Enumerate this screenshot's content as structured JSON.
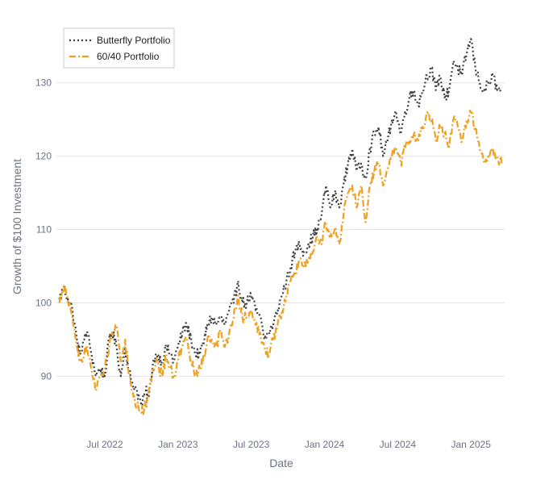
{
  "chart_data": {
    "type": "line",
    "title": "",
    "xlabel": "Date",
    "ylabel": "Growth of $100 Investment",
    "ylim": [
      83,
      138
    ],
    "y_ticks": [
      90,
      100,
      110,
      120,
      130
    ],
    "x_ticks": [
      {
        "t": 2022.5,
        "label": "Jul 2022"
      },
      {
        "t": 2023.0,
        "label": "Jan 2023"
      },
      {
        "t": 2023.5,
        "label": "Jul 2023"
      },
      {
        "t": 2024.0,
        "label": "Jan 2024"
      },
      {
        "t": 2024.5,
        "label": "Jul 2024"
      },
      {
        "t": 2025.0,
        "label": "Jan 2025"
      }
    ],
    "xlim": [
      2022.17,
      2025.23
    ],
    "grid": true,
    "legend_position": "top-left",
    "series": [
      {
        "name": "Butterfly Portfolio",
        "color": "#404040",
        "dash": "2,3",
        "x": [
          2022.19,
          2022.22,
          2022.25,
          2022.28,
          2022.31,
          2022.33,
          2022.36,
          2022.38,
          2022.41,
          2022.44,
          2022.47,
          2022.5,
          2022.53,
          2022.55,
          2022.58,
          2022.61,
          2022.64,
          2022.66,
          2022.69,
          2022.72,
          2022.75,
          2022.78,
          2022.8,
          2022.83,
          2022.86,
          2022.89,
          2022.92,
          2022.95,
          2022.97,
          2023.0,
          2023.03,
          2023.06,
          2023.09,
          2023.12,
          2023.15,
          2023.18,
          2023.2,
          2023.23,
          2023.26,
          2023.29,
          2023.32,
          2023.35,
          2023.38,
          2023.41,
          2023.44,
          2023.47,
          2023.5,
          2023.53,
          2023.56,
          2023.59,
          2023.62,
          2023.65,
          2023.68,
          2023.71,
          2023.74,
          2023.77,
          2023.8,
          2023.83,
          2023.86,
          2023.89,
          2023.92,
          2023.95,
          2023.98,
          2024.01,
          2024.04,
          2024.07,
          2024.1,
          2024.13,
          2024.16,
          2024.19,
          2024.22,
          2024.25,
          2024.28,
          2024.31,
          2024.34,
          2024.37,
          2024.4,
          2024.43,
          2024.46,
          2024.49,
          2024.52,
          2024.55,
          2024.58,
          2024.61,
          2024.64,
          2024.67,
          2024.7,
          2024.73,
          2024.76,
          2024.79,
          2024.82,
          2024.85,
          2024.88,
          2024.91,
          2024.94,
          2024.97,
          2025.0,
          2025.03,
          2025.06,
          2025.09,
          2025.12,
          2025.15,
          2025.18,
          2025.21
        ],
        "y": [
          100.5,
          102,
          100.5,
          99,
          95,
          93,
          95,
          96,
          93,
          90,
          91,
          90,
          95,
          96,
          94,
          90,
          94,
          91,
          89,
          88,
          86,
          88,
          87,
          92,
          93,
          92,
          94,
          93,
          92,
          94,
          96,
          97,
          95,
          93,
          93,
          95,
          97,
          98,
          97,
          98,
          97,
          99,
          100,
          103,
          100,
          100,
          101,
          99,
          98,
          95,
          96,
          97,
          99,
          101,
          103,
          105,
          107,
          108,
          107,
          108,
          109,
          110,
          112,
          116,
          113,
          115,
          113,
          116,
          119,
          121,
          118,
          119,
          117,
          121,
          123,
          124,
          120,
          122,
          125,
          126,
          123,
          126,
          128,
          129,
          127,
          129,
          131,
          132,
          129,
          131,
          128,
          129,
          133,
          132,
          131,
          134,
          136,
          132,
          130,
          129,
          130,
          131,
          129,
          129
        ]
      },
      {
        "name": "60/40 Portfolio",
        "color": "#f0a020",
        "dash": "8,3,2,3",
        "x": [
          2022.19,
          2022.22,
          2022.25,
          2022.28,
          2022.31,
          2022.33,
          2022.36,
          2022.38,
          2022.41,
          2022.44,
          2022.47,
          2022.5,
          2022.53,
          2022.55,
          2022.58,
          2022.61,
          2022.64,
          2022.66,
          2022.69,
          2022.72,
          2022.75,
          2022.78,
          2022.8,
          2022.83,
          2022.86,
          2022.89,
          2022.92,
          2022.95,
          2022.97,
          2023.0,
          2023.03,
          2023.06,
          2023.09,
          2023.12,
          2023.15,
          2023.18,
          2023.2,
          2023.23,
          2023.26,
          2023.29,
          2023.32,
          2023.35,
          2023.38,
          2023.41,
          2023.44,
          2023.47,
          2023.5,
          2023.53,
          2023.56,
          2023.59,
          2023.62,
          2023.65,
          2023.68,
          2023.71,
          2023.74,
          2023.77,
          2023.8,
          2023.83,
          2023.86,
          2023.89,
          2023.92,
          2023.95,
          2023.98,
          2024.01,
          2024.04,
          2024.07,
          2024.1,
          2024.13,
          2024.16,
          2024.19,
          2024.22,
          2024.25,
          2024.28,
          2024.31,
          2024.34,
          2024.37,
          2024.4,
          2024.43,
          2024.46,
          2024.49,
          2024.52,
          2024.55,
          2024.58,
          2024.61,
          2024.64,
          2024.67,
          2024.7,
          2024.73,
          2024.76,
          2024.79,
          2024.82,
          2024.85,
          2024.88,
          2024.91,
          2024.94,
          2024.97,
          2025.0,
          2025.03,
          2025.06,
          2025.09,
          2025.12,
          2025.15,
          2025.18,
          2025.21
        ],
        "y": [
          100,
          102.5,
          100,
          98,
          94,
          92,
          93,
          94,
          91,
          88,
          90,
          91,
          94,
          96,
          97,
          92,
          95,
          91,
          88,
          86,
          85,
          86,
          88,
          91,
          92,
          90,
          93,
          91,
          90,
          92,
          94,
          95,
          92,
          90,
          91,
          93,
          95,
          95,
          94,
          96,
          94,
          96,
          98,
          101,
          98,
          98,
          99,
          97,
          96,
          94,
          93,
          95,
          97,
          99,
          101,
          103,
          104,
          106,
          105,
          106,
          107,
          109,
          108,
          111,
          109,
          110,
          108,
          112,
          115,
          116,
          113,
          116,
          111,
          116,
          118,
          119,
          116,
          118,
          120,
          121,
          119,
          121,
          122,
          123,
          122,
          124,
          126,
          125,
          122,
          124,
          123,
          121,
          125,
          124,
          122,
          125,
          126,
          124,
          121,
          119,
          120,
          121,
          120,
          119
        ]
      }
    ]
  }
}
